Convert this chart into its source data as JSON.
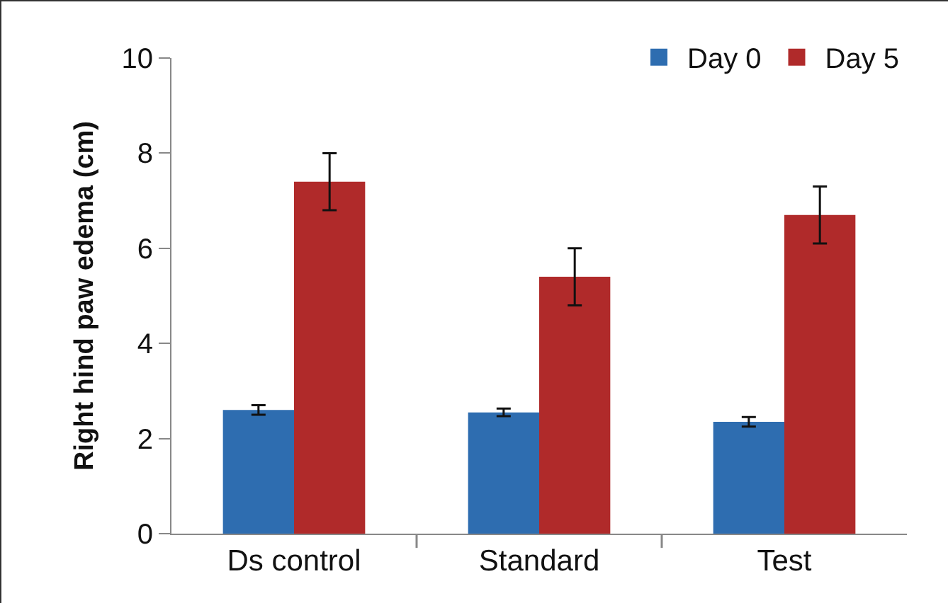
{
  "chart_data": {
    "type": "bar",
    "ylabel": "Right hind paw edema (cm)",
    "categories": [
      "Ds control",
      "Standard",
      "Test"
    ],
    "series": [
      {
        "name": "Day 0",
        "color": "#2e6db0",
        "values": [
          2.6,
          2.55,
          2.35
        ],
        "errors": [
          0.1,
          0.08,
          0.1
        ]
      },
      {
        "name": "Day 5",
        "color": "#b02a2a",
        "values": [
          7.4,
          5.4,
          6.7
        ],
        "errors": [
          0.6,
          0.6,
          0.6
        ]
      }
    ],
    "ylim": [
      0,
      10
    ],
    "yticks": [
      0,
      2,
      4,
      6,
      8,
      10
    ],
    "grid": false,
    "legend": "top right"
  }
}
